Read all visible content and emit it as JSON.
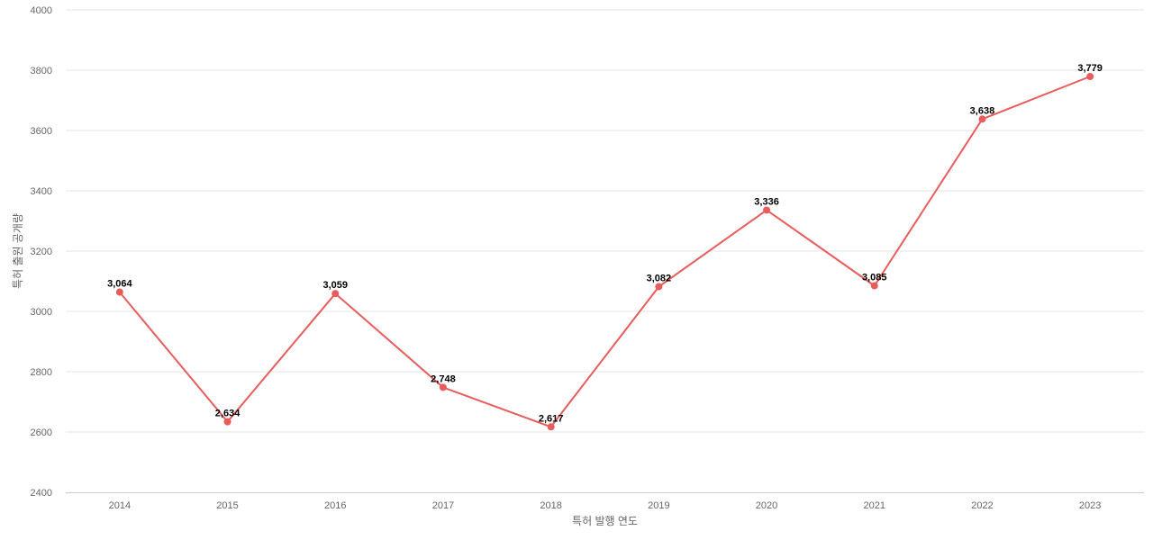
{
  "chart_data": {
    "type": "line",
    "title": "",
    "xlabel": "특허 발행 연도",
    "ylabel": "특허 출원 공개량",
    "categories": [
      "2014",
      "2015",
      "2016",
      "2017",
      "2018",
      "2019",
      "2020",
      "2021",
      "2022",
      "2023"
    ],
    "series": [
      {
        "values": [
          3064,
          2634,
          3059,
          2748,
          2617,
          3082,
          3336,
          3085,
          3638,
          3779
        ],
        "data_labels": [
          "3,064",
          "2,634",
          "3,059",
          "2,748",
          "2,617",
          "3,082",
          "3,336",
          "3,085",
          "3,638",
          "3,779"
        ],
        "color": "#e85c5c"
      }
    ],
    "ylim": [
      2400,
      4000
    ],
    "yticks": [
      "2400",
      "2600",
      "2800",
      "3000",
      "3200",
      "3400",
      "3600",
      "3800",
      "4000"
    ],
    "grid": true,
    "legend": "none",
    "data_labels": true
  }
}
